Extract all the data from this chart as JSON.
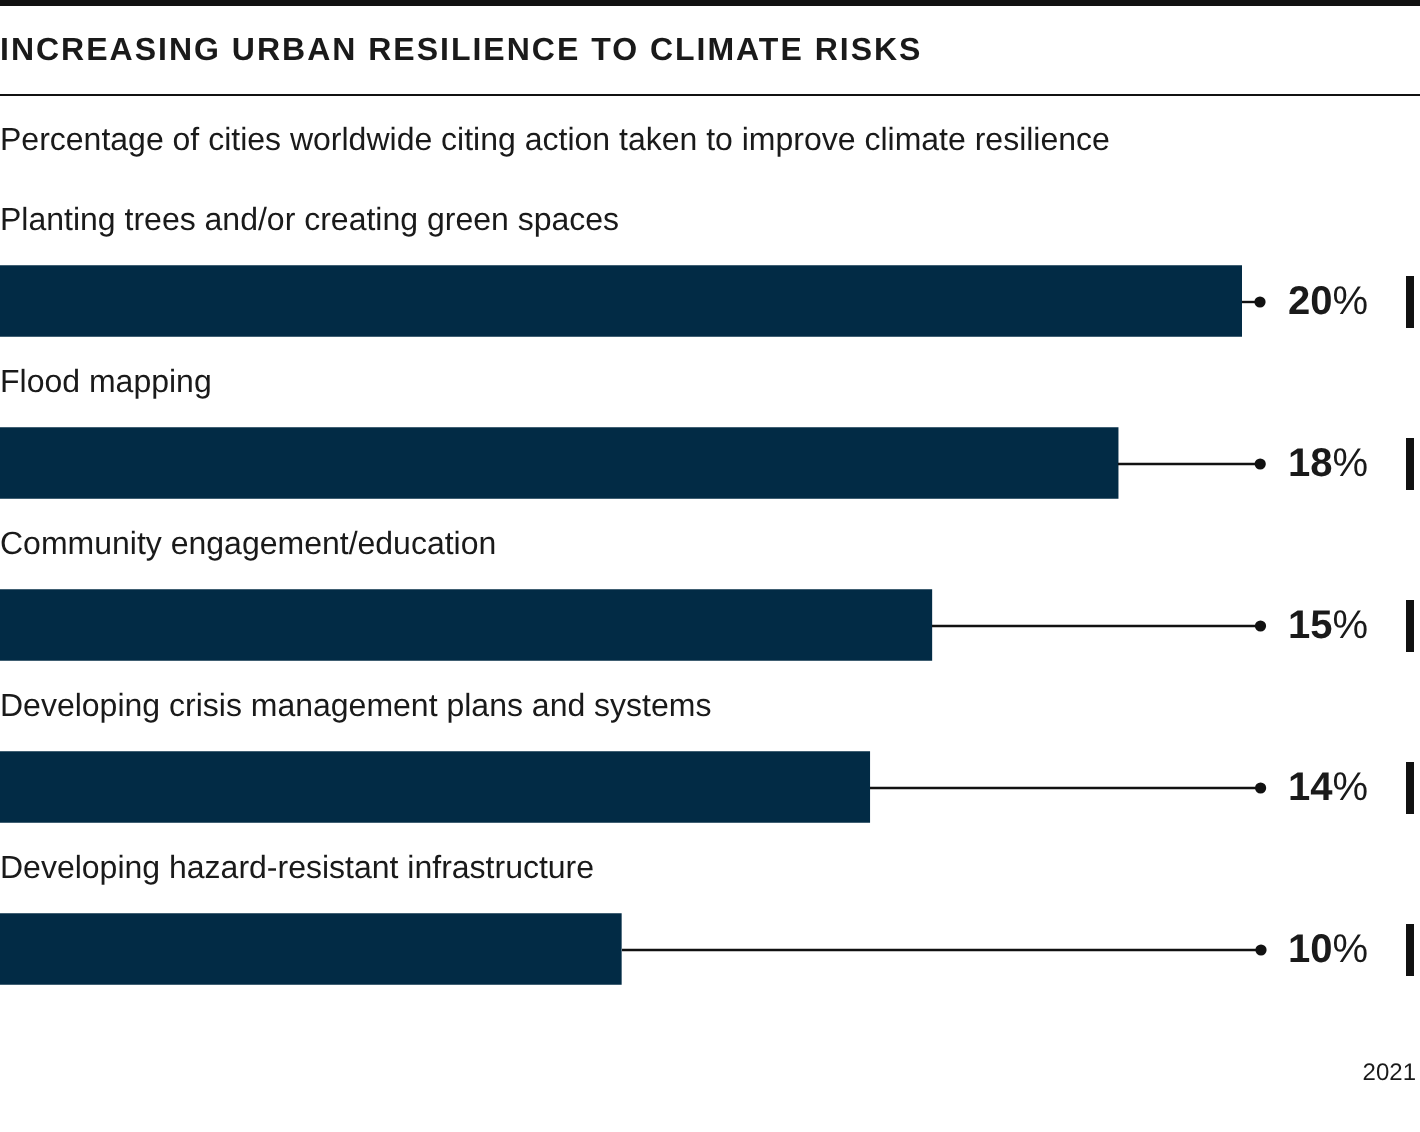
{
  "chart_data": {
    "type": "bar",
    "orientation": "horizontal",
    "title": "INCREASING URBAN RESILIENCE TO CLIMATE RISKS",
    "subtitle": "Percentage of cities worldwide citing action taken to improve climate resilience",
    "categories": [
      "Planting trees and/or creating green spaces",
      "Flood mapping",
      "Community engagement/education",
      "Developing crisis management plans and systems",
      "Developing hazard-resistant infrastructure"
    ],
    "values": [
      20,
      18,
      15,
      14,
      10
    ],
    "value_labels": [
      "20%",
      "18%",
      "15%",
      "14%",
      "10%"
    ],
    "color": "#022b45",
    "data_labels": true,
    "annotations": [
      "2021"
    ]
  }
}
